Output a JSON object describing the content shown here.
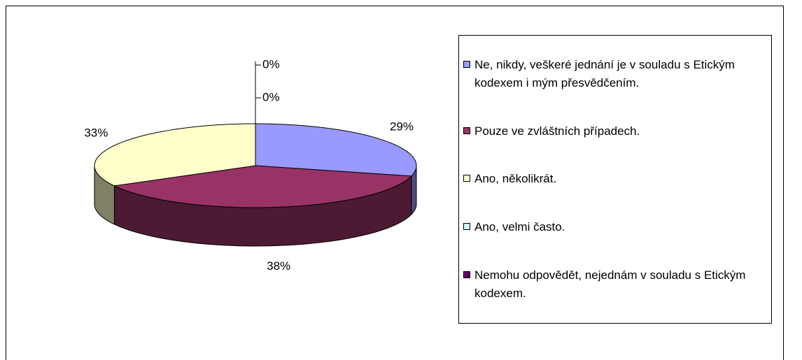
{
  "chart_data": {
    "type": "pie",
    "categories": [
      "Ne, nikdy, veškeré jednání je v souladu s Etickým kodexem i mým přesvědčením.",
      "Pouze ve zvláštních případech.",
      "Ano, několikrát.",
      "Ano, velmi často.",
      "Nemohu odpovědět, nejednám v souladu s Etickým kodexem."
    ],
    "values": [
      29,
      38,
      33,
      0,
      0
    ],
    "value_labels": [
      "29%",
      "38%",
      "33%",
      "0%",
      "0%"
    ],
    "colors": [
      "#9999ff",
      "#993366",
      "#ffffcc",
      "#ccffff",
      "#660066"
    ],
    "legend": "right"
  }
}
